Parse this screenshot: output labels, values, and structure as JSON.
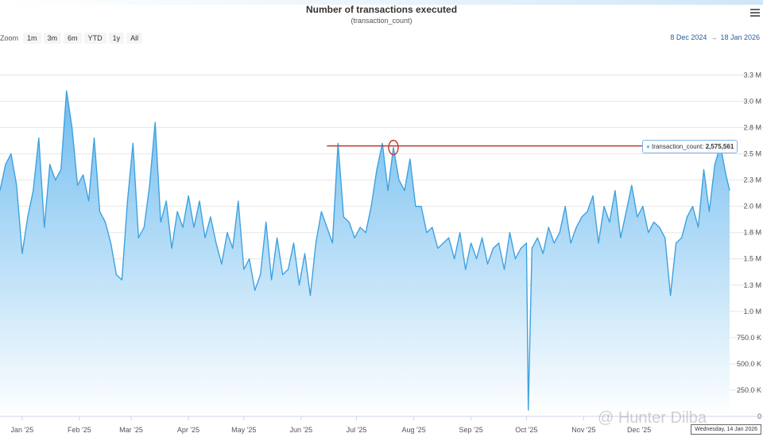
{
  "toolbar": {
    "zoom_label": "Zoom",
    "zoom_buttons": [
      "1m",
      "3m",
      "6m",
      "YTD",
      "1y",
      "All"
    ],
    "range_from": "8 Dec 2024",
    "range_arrow": "→",
    "range_to": "18 Jan 2026"
  },
  "tooltip": {
    "series": "transaction_count",
    "value": "2,575,561"
  },
  "date_flag": "Wednesday, 14 Jan 2026",
  "watermark": "@ Hunter Dilba",
  "colors": {
    "line": "#3ea2e0",
    "fill_top": "#6fbcef",
    "fill_bottom": "#ffffff",
    "annotation": "#c0392b",
    "tooltip_border": "#7cb5ec"
  },
  "icons": {
    "menu": "hamburger-menu-icon",
    "marker": "circle-marker-icon"
  },
  "chart_data": {
    "type": "area",
    "title": "Number of transactions executed",
    "subtitle": "(transaction_count)",
    "xlabel": "",
    "ylabel": "",
    "grid": true,
    "legend": "none",
    "x_start": "2024-12-20",
    "x_end": "2026-01-19",
    "ylim": [
      0,
      3450000
    ],
    "y_ticks": [
      0,
      250000,
      500000,
      750000,
      1000000,
      1250000,
      1500000,
      1750000,
      2000000,
      2250000,
      2500000,
      2750000,
      3000000,
      3250000
    ],
    "y_tick_labels": [
      "0",
      "250.0 K",
      "500.0 K",
      "750.0 K",
      "1.0 M",
      "1.3 M",
      "1.5 M",
      "1.8 M",
      "2.0 M",
      "2.3 M",
      "2.5 M",
      "2.8 M",
      "3.0 M",
      "3.3 M"
    ],
    "x_ticks": [
      "2025-01-01",
      "2025-02-01",
      "2025-03-01",
      "2025-04-01",
      "2025-05-01",
      "2025-06-01",
      "2025-07-01",
      "2025-08-01",
      "2025-09-01",
      "2025-10-01",
      "2025-11-01",
      "2025-12-01"
    ],
    "x_tick_labels": [
      "Jan '25",
      "Feb '25",
      "Mar '25",
      "Apr '25",
      "May '25",
      "Jun '25",
      "Jul '25",
      "Aug '25",
      "Sep '25",
      "Oct '25",
      "Nov '25",
      "Dec '25"
    ],
    "series": [
      {
        "name": "transaction_count",
        "points": [
          [
            "2024-12-20",
            2150000
          ],
          [
            "2024-12-23",
            2400000
          ],
          [
            "2024-12-26",
            2500000
          ],
          [
            "2024-12-29",
            2200000
          ],
          [
            "2025-01-01",
            1550000
          ],
          [
            "2025-01-04",
            1900000
          ],
          [
            "2025-01-07",
            2150000
          ],
          [
            "2025-01-10",
            2650000
          ],
          [
            "2025-01-13",
            1800000
          ],
          [
            "2025-01-16",
            2400000
          ],
          [
            "2025-01-19",
            2250000
          ],
          [
            "2025-01-22",
            2350000
          ],
          [
            "2025-01-25",
            3100000
          ],
          [
            "2025-01-28",
            2750000
          ],
          [
            "2025-01-31",
            2200000
          ],
          [
            "2025-02-03",
            2300000
          ],
          [
            "2025-02-06",
            2050000
          ],
          [
            "2025-02-09",
            2650000
          ],
          [
            "2025-02-12",
            1950000
          ],
          [
            "2025-02-15",
            1850000
          ],
          [
            "2025-02-18",
            1650000
          ],
          [
            "2025-02-21",
            1350000
          ],
          [
            "2025-02-24",
            1300000
          ],
          [
            "2025-02-27",
            2050000
          ],
          [
            "2025-03-02",
            2600000
          ],
          [
            "2025-03-05",
            1700000
          ],
          [
            "2025-03-08",
            1800000
          ],
          [
            "2025-03-11",
            2200000
          ],
          [
            "2025-03-14",
            2800000
          ],
          [
            "2025-03-17",
            1850000
          ],
          [
            "2025-03-20",
            2050000
          ],
          [
            "2025-03-23",
            1600000
          ],
          [
            "2025-03-26",
            1950000
          ],
          [
            "2025-03-29",
            1800000
          ],
          [
            "2025-04-01",
            2100000
          ],
          [
            "2025-04-04",
            1800000
          ],
          [
            "2025-04-07",
            2050000
          ],
          [
            "2025-04-10",
            1700000
          ],
          [
            "2025-04-13",
            1900000
          ],
          [
            "2025-04-16",
            1650000
          ],
          [
            "2025-04-19",
            1450000
          ],
          [
            "2025-04-22",
            1750000
          ],
          [
            "2025-04-25",
            1600000
          ],
          [
            "2025-04-28",
            2050000
          ],
          [
            "2025-05-01",
            1400000
          ],
          [
            "2025-05-04",
            1500000
          ],
          [
            "2025-05-07",
            1200000
          ],
          [
            "2025-05-10",
            1350000
          ],
          [
            "2025-05-13",
            1850000
          ],
          [
            "2025-05-16",
            1300000
          ],
          [
            "2025-05-19",
            1700000
          ],
          [
            "2025-05-22",
            1350000
          ],
          [
            "2025-05-25",
            1400000
          ],
          [
            "2025-05-28",
            1650000
          ],
          [
            "2025-05-31",
            1250000
          ],
          [
            "2025-06-03",
            1550000
          ],
          [
            "2025-06-06",
            1150000
          ],
          [
            "2025-06-09",
            1650000
          ],
          [
            "2025-06-12",
            1950000
          ],
          [
            "2025-06-15",
            1800000
          ],
          [
            "2025-06-18",
            1650000
          ],
          [
            "2025-06-21",
            2600000
          ],
          [
            "2025-06-24",
            1900000
          ],
          [
            "2025-06-27",
            1850000
          ],
          [
            "2025-06-30",
            1700000
          ],
          [
            "2025-07-03",
            1800000
          ],
          [
            "2025-07-06",
            1750000
          ],
          [
            "2025-07-09",
            2000000
          ],
          [
            "2025-07-12",
            2350000
          ],
          [
            "2025-07-15",
            2600000
          ],
          [
            "2025-07-18",
            2150000
          ],
          [
            "2025-07-21",
            2560000
          ],
          [
            "2025-07-24",
            2250000
          ],
          [
            "2025-07-27",
            2150000
          ],
          [
            "2025-07-30",
            2450000
          ],
          [
            "2025-08-02",
            2000000
          ],
          [
            "2025-08-05",
            2000000
          ],
          [
            "2025-08-08",
            1750000
          ],
          [
            "2025-08-11",
            1800000
          ],
          [
            "2025-08-14",
            1600000
          ],
          [
            "2025-08-17",
            1650000
          ],
          [
            "2025-08-20",
            1700000
          ],
          [
            "2025-08-23",
            1500000
          ],
          [
            "2025-08-26",
            1750000
          ],
          [
            "2025-08-29",
            1400000
          ],
          [
            "2025-09-01",
            1650000
          ],
          [
            "2025-09-04",
            1500000
          ],
          [
            "2025-09-07",
            1700000
          ],
          [
            "2025-09-10",
            1450000
          ],
          [
            "2025-09-13",
            1600000
          ],
          [
            "2025-09-16",
            1650000
          ],
          [
            "2025-09-19",
            1400000
          ],
          [
            "2025-09-22",
            1750000
          ],
          [
            "2025-09-25",
            1500000
          ],
          [
            "2025-09-28",
            1600000
          ],
          [
            "2025-10-01",
            1650000
          ],
          [
            "2025-10-02",
            60000
          ],
          [
            "2025-10-04",
            1600000
          ],
          [
            "2025-10-07",
            1700000
          ],
          [
            "2025-10-10",
            1550000
          ],
          [
            "2025-10-13",
            1800000
          ],
          [
            "2025-10-16",
            1650000
          ],
          [
            "2025-10-19",
            1750000
          ],
          [
            "2025-10-22",
            2000000
          ],
          [
            "2025-10-25",
            1650000
          ],
          [
            "2025-10-28",
            1800000
          ],
          [
            "2025-10-31",
            1900000
          ],
          [
            "2025-11-03",
            1950000
          ],
          [
            "2025-11-06",
            2100000
          ],
          [
            "2025-11-09",
            1650000
          ],
          [
            "2025-11-12",
            2000000
          ],
          [
            "2025-11-15",
            1850000
          ],
          [
            "2025-11-18",
            2150000
          ],
          [
            "2025-11-21",
            1700000
          ],
          [
            "2025-11-24",
            1950000
          ],
          [
            "2025-11-27",
            2200000
          ],
          [
            "2025-11-30",
            1900000
          ],
          [
            "2025-12-03",
            2000000
          ],
          [
            "2025-12-06",
            1750000
          ],
          [
            "2025-12-09",
            1850000
          ],
          [
            "2025-12-12",
            1800000
          ],
          [
            "2025-12-15",
            1700000
          ],
          [
            "2025-12-18",
            1150000
          ],
          [
            "2025-12-21",
            1650000
          ],
          [
            "2025-12-24",
            1700000
          ],
          [
            "2025-12-27",
            1900000
          ],
          [
            "2025-12-30",
            2000000
          ],
          [
            "2026-01-02",
            1800000
          ],
          [
            "2026-01-05",
            2350000
          ],
          [
            "2026-01-08",
            1950000
          ],
          [
            "2026-01-11",
            2400000
          ],
          [
            "2026-01-14",
            2575561
          ],
          [
            "2026-01-17",
            2300000
          ],
          [
            "2026-01-19",
            2150000
          ]
        ]
      }
    ],
    "annotations": [
      {
        "type": "horizontal-line",
        "y": 2575561,
        "x_from": "2025-06-15",
        "x_to": "2026-01-19"
      },
      {
        "type": "circle",
        "x": "2025-07-21",
        "y": 2560000
      }
    ]
  }
}
